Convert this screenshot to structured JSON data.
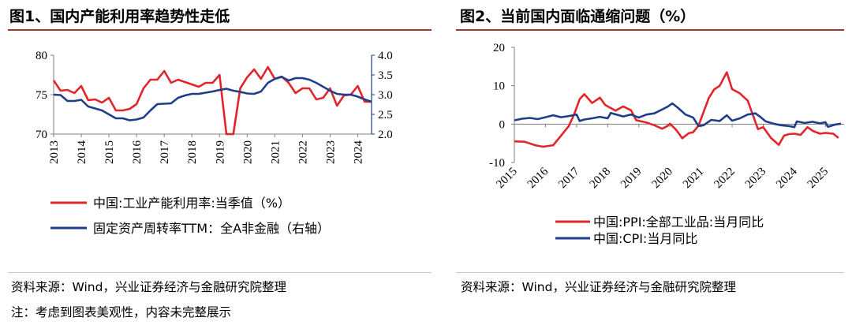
{
  "figure1": {
    "title": "图1、国内产能利用率趋势性走低",
    "source": "资料来源：Wind，兴业证券经济与金融研究院整理",
    "note": "注：考虑到图表美观性，内容未完整展示",
    "chart_data": {
      "type": "line",
      "x_ticks": [
        "2013",
        "2014",
        "2015",
        "2016",
        "2017",
        "2018",
        "2019",
        "2020",
        "2021",
        "2022",
        "2023",
        "2024"
      ],
      "left_axis": {
        "ylim": [
          70,
          80
        ],
        "ticks": [
          "70",
          "75",
          "80"
        ]
      },
      "right_axis": {
        "ylim": [
          2.0,
          4.0
        ],
        "ticks": [
          "2.0",
          "2.5",
          "3.0",
          "3.5",
          "4.0"
        ],
        "color": "#1f3d8a"
      },
      "series": [
        {
          "name": "中国:工业产能利用率:当季值（%）",
          "axis": "left",
          "color": "#e0262b",
          "points": [
            [
              2013.0,
              76.8
            ],
            [
              2013.25,
              75.5
            ],
            [
              2013.5,
              75.6
            ],
            [
              2013.75,
              75.2
            ],
            [
              2014.0,
              76.1
            ],
            [
              2014.25,
              74.3
            ],
            [
              2014.5,
              74.4
            ],
            [
              2014.75,
              74.0
            ],
            [
              2015.0,
              74.6
            ],
            [
              2015.25,
              73.0
            ],
            [
              2015.5,
              73.0
            ],
            [
              2015.75,
              73.2
            ],
            [
              2016.0,
              73.8
            ],
            [
              2016.25,
              75.8
            ],
            [
              2016.5,
              76.9
            ],
            [
              2016.75,
              76.9
            ],
            [
              2017.0,
              78.0
            ],
            [
              2017.25,
              76.5
            ],
            [
              2017.5,
              76.9
            ],
            [
              2017.75,
              76.6
            ],
            [
              2018.0,
              76.3
            ],
            [
              2018.25,
              76.0
            ],
            [
              2018.5,
              76.5
            ],
            [
              2018.75,
              76.5
            ],
            [
              2019.0,
              77.5
            ],
            [
              2019.25,
              70.0
            ],
            [
              2019.5,
              70.0
            ],
            [
              2019.75,
              75.8
            ],
            [
              2020.0,
              77.2
            ],
            [
              2020.25,
              78.2
            ],
            [
              2020.5,
              77.0
            ],
            [
              2020.75,
              78.5
            ],
            [
              2021.0,
              77.0
            ],
            [
              2021.25,
              77.3
            ],
            [
              2021.5,
              76.5
            ],
            [
              2021.75,
              75.2
            ],
            [
              2022.0,
              75.8
            ],
            [
              2022.25,
              75.8
            ],
            [
              2022.5,
              74.4
            ],
            [
              2022.75,
              74.6
            ],
            [
              2023.0,
              75.8
            ],
            [
              2023.25,
              73.6
            ],
            [
              2023.5,
              74.9
            ],
            [
              2023.75,
              75.0
            ],
            [
              2024.0,
              76.1
            ],
            [
              2024.25,
              74.1
            ],
            [
              2024.5,
              74.1
            ]
          ]
        },
        {
          "name": "固定资产周转率TTM：全A非金融（右轴）",
          "axis": "right",
          "color": "#1f3d8a",
          "points": [
            [
              2013.0,
              3.0
            ],
            [
              2013.25,
              2.99
            ],
            [
              2013.5,
              2.84
            ],
            [
              2013.75,
              2.84
            ],
            [
              2014.0,
              2.87
            ],
            [
              2014.25,
              2.7
            ],
            [
              2014.5,
              2.65
            ],
            [
              2014.75,
              2.6
            ],
            [
              2015.0,
              2.5
            ],
            [
              2015.25,
              2.4
            ],
            [
              2015.5,
              2.4
            ],
            [
              2015.75,
              2.35
            ],
            [
              2016.0,
              2.37
            ],
            [
              2016.25,
              2.42
            ],
            [
              2016.5,
              2.6
            ],
            [
              2016.75,
              2.76
            ],
            [
              2017.0,
              2.77
            ],
            [
              2017.25,
              2.78
            ],
            [
              2017.5,
              2.92
            ],
            [
              2017.75,
              2.98
            ],
            [
              2018.0,
              3.02
            ],
            [
              2018.25,
              3.02
            ],
            [
              2018.5,
              3.05
            ],
            [
              2018.75,
              3.08
            ],
            [
              2019.0,
              3.12
            ],
            [
              2019.25,
              3.15
            ],
            [
              2019.5,
              3.1
            ],
            [
              2019.75,
              3.07
            ],
            [
              2020.0,
              3.03
            ],
            [
              2020.25,
              3.02
            ],
            [
              2020.5,
              3.08
            ],
            [
              2020.75,
              3.3
            ],
            [
              2021.0,
              3.4
            ],
            [
              2021.25,
              3.45
            ],
            [
              2021.5,
              3.36
            ],
            [
              2021.75,
              3.42
            ],
            [
              2022.0,
              3.42
            ],
            [
              2022.25,
              3.38
            ],
            [
              2022.5,
              3.3
            ],
            [
              2022.75,
              3.2
            ],
            [
              2023.0,
              3.1
            ],
            [
              2023.25,
              3.02
            ],
            [
              2023.5,
              3.0
            ],
            [
              2023.75,
              3.0
            ],
            [
              2024.0,
              2.95
            ],
            [
              2024.25,
              2.88
            ],
            [
              2024.5,
              2.82
            ]
          ]
        }
      ],
      "legend_position": "bottom"
    }
  },
  "figure2": {
    "title": "图2、当前国内面临通缩问题（%）",
    "source": "资料来源：Wind，兴业证券经济与金融研究院整理",
    "chart_data": {
      "type": "line",
      "x_ticks": [
        "2015",
        "2016",
        "2017",
        "2018",
        "2019",
        "2020",
        "2021",
        "2022",
        "2023",
        "2024",
        "2025"
      ],
      "y_axis": {
        "ylim": [
          -10,
          20
        ],
        "ticks": [
          "-10",
          "0",
          "10",
          "20"
        ]
      },
      "series": [
        {
          "name": "中国:PPI:全部工业品:当月同比",
          "color": "#e0262b",
          "points": [
            [
              2015.0,
              -4.5
            ],
            [
              2015.33,
              -4.6
            ],
            [
              2015.67,
              -5.5
            ],
            [
              2015.92,
              -5.9
            ],
            [
              2016.25,
              -5.5
            ],
            [
              2016.5,
              -3.0
            ],
            [
              2016.75,
              -0.5
            ],
            [
              2016.92,
              2.5
            ],
            [
              2017.1,
              6.5
            ],
            [
              2017.25,
              7.8
            ],
            [
              2017.5,
              5.5
            ],
            [
              2017.75,
              6.9
            ],
            [
              2017.92,
              5.0
            ],
            [
              2018.25,
              3.5
            ],
            [
              2018.5,
              4.6
            ],
            [
              2018.75,
              3.6
            ],
            [
              2018.92,
              1.0
            ],
            [
              2019.25,
              0.4
            ],
            [
              2019.5,
              -0.3
            ],
            [
              2019.75,
              -1.2
            ],
            [
              2019.92,
              -0.5
            ],
            [
              2020.0,
              0.1
            ],
            [
              2020.2,
              -1.5
            ],
            [
              2020.4,
              -3.7
            ],
            [
              2020.6,
              -2.4
            ],
            [
              2020.75,
              -2.1
            ],
            [
              2020.92,
              -0.4
            ],
            [
              2021.25,
              6.8
            ],
            [
              2021.42,
              9.0
            ],
            [
              2021.6,
              10.0
            ],
            [
              2021.83,
              13.5
            ],
            [
              2022.0,
              9.1
            ],
            [
              2022.25,
              8.0
            ],
            [
              2022.5,
              6.1
            ],
            [
              2022.67,
              2.3
            ],
            [
              2022.83,
              -1.3
            ],
            [
              2023.0,
              -0.8
            ],
            [
              2023.25,
              -3.6
            ],
            [
              2023.5,
              -5.4
            ],
            [
              2023.67,
              -3.0
            ],
            [
              2023.83,
              -2.6
            ],
            [
              2024.0,
              -2.5
            ],
            [
              2024.2,
              -2.8
            ],
            [
              2024.42,
              -0.8
            ],
            [
              2024.6,
              -1.8
            ],
            [
              2024.83,
              -2.5
            ],
            [
              2025.0,
              -2.3
            ],
            [
              2025.25,
              -2.5
            ],
            [
              2025.42,
              -3.6
            ]
          ]
        },
        {
          "name": "中国:CPI:当月同比",
          "color": "#1f3d8a",
          "points": [
            [
              2015.0,
              1.0
            ],
            [
              2015.25,
              1.4
            ],
            [
              2015.5,
              1.6
            ],
            [
              2015.75,
              1.3
            ],
            [
              2016.0,
              1.8
            ],
            [
              2016.25,
              2.3
            ],
            [
              2016.5,
              1.8
            ],
            [
              2016.75,
              2.1
            ],
            [
              2017.0,
              2.5
            ],
            [
              2017.1,
              0.8
            ],
            [
              2017.25,
              1.2
            ],
            [
              2017.5,
              1.5
            ],
            [
              2017.75,
              1.9
            ],
            [
              2018.0,
              1.5
            ],
            [
              2018.1,
              2.9
            ],
            [
              2018.5,
              2.0
            ],
            [
              2018.75,
              2.5
            ],
            [
              2019.0,
              1.7
            ],
            [
              2019.25,
              2.5
            ],
            [
              2019.5,
              2.8
            ],
            [
              2019.75,
              3.8
            ],
            [
              2019.92,
              4.5
            ],
            [
              2020.08,
              5.4
            ],
            [
              2020.25,
              4.3
            ],
            [
              2020.5,
              2.5
            ],
            [
              2020.75,
              1.7
            ],
            [
              2020.92,
              -0.5
            ],
            [
              2021.08,
              -0.3
            ],
            [
              2021.33,
              1.1
            ],
            [
              2021.6,
              0.8
            ],
            [
              2021.83,
              2.3
            ],
            [
              2022.0,
              0.9
            ],
            [
              2022.25,
              1.5
            ],
            [
              2022.5,
              2.5
            ],
            [
              2022.75,
              2.8
            ],
            [
              2022.92,
              1.8
            ],
            [
              2023.08,
              0.7
            ],
            [
              2023.33,
              0.1
            ],
            [
              2023.58,
              -0.3
            ],
            [
              2023.83,
              -0.5
            ],
            [
              2024.0,
              -0.8
            ],
            [
              2024.08,
              0.7
            ],
            [
              2024.33,
              0.3
            ],
            [
              2024.58,
              0.6
            ],
            [
              2024.83,
              0.2
            ],
            [
              2025.0,
              0.5
            ],
            [
              2025.08,
              -0.7
            ],
            [
              2025.33,
              -0.1
            ],
            [
              2025.5,
              0.1
            ]
          ]
        }
      ],
      "legend_position": "bottom"
    }
  }
}
